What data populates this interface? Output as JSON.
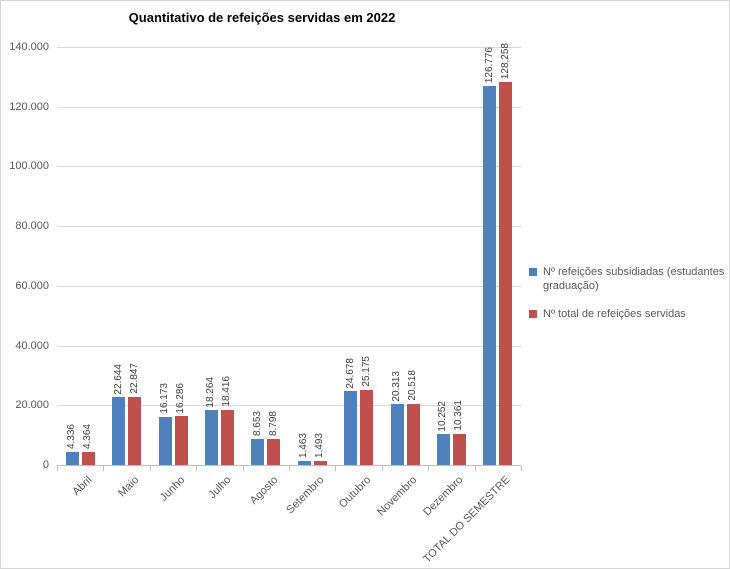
{
  "chart": {
    "title": "Quantitativo de refeições servidas em 2022"
  },
  "chart_data": {
    "type": "bar",
    "title": "Quantitativo de refeições servidas em 2022",
    "categories": [
      "Abril",
      "Maio",
      "Junho",
      "Julho",
      "Agosto",
      "Setembro",
      "Outubro",
      "Novembro",
      "Dezembro",
      "TOTAL DO SEMESTRE"
    ],
    "series": [
      {
        "name": "Nº refeições subsidiadas (estudantes graduação)",
        "color": "#4F81BD",
        "values": [
          4336,
          22644,
          16173,
          18264,
          8653,
          1463,
          24678,
          20313,
          10252,
          126776
        ],
        "labels": [
          "4.336",
          "22.644",
          "16.173",
          "18.264",
          "8.653",
          "1.463",
          "24.678",
          "20.313",
          "10.252",
          "126.776"
        ]
      },
      {
        "name": "Nº total de refeições servidas",
        "color": "#C0504D",
        "values": [
          4364,
          22847,
          16286,
          18416,
          8798,
          1493,
          25175,
          20518,
          10361,
          128258
        ],
        "labels": [
          "4.364",
          "22.847",
          "16.286",
          "18.416",
          "8.798",
          "1.493",
          "25.175",
          "20.518",
          "10.361",
          "128.258"
        ]
      }
    ],
    "ylim": [
      0,
      140000
    ],
    "ytick_step": 20000,
    "ytick_labels": [
      "0",
      "20.000",
      "40.000",
      "60.000",
      "80.000",
      "100.000",
      "120.000",
      "140.000"
    ],
    "grid": true,
    "legend_position": "right",
    "colors": {
      "gridline": "#d9d9d9",
      "axis_line": "#bfbfbf",
      "axis_text": "#595959",
      "data_label_text": "#3f3f3f"
    }
  }
}
